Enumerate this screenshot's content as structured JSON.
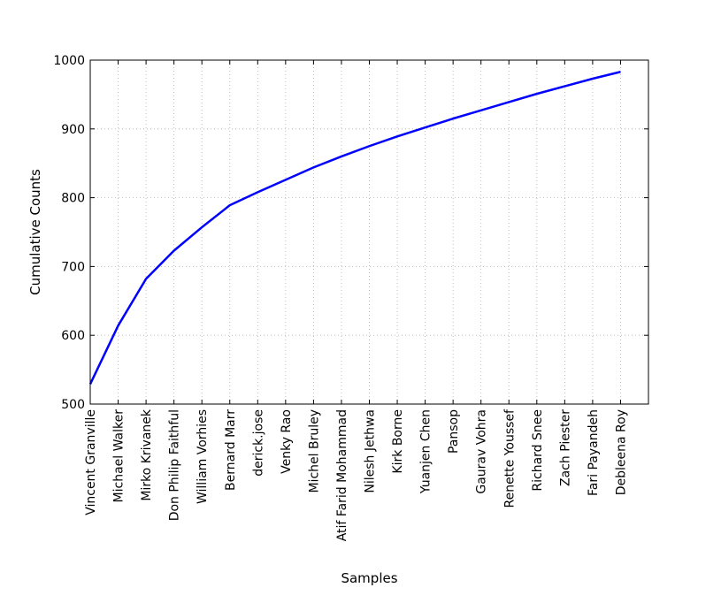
{
  "chart_data": {
    "type": "line",
    "xlabel": "Samples",
    "ylabel": "Cumulative Counts",
    "ylim": [
      500,
      1000
    ],
    "yticks": [
      500,
      600,
      700,
      800,
      900,
      1000
    ],
    "grid": true,
    "categories": [
      "Vincent Granville",
      "Michael Walker",
      "Mirko Krivanek",
      "Don Philip Faithful",
      "William Vorhies",
      "Bernard Marr",
      "derick.jose",
      "Venky Rao",
      "Michel Bruley",
      "Atif Farid Mohammad",
      "Nilesh Jethwa",
      "Kirk Borne",
      "Yuanjen Chen",
      "Pansop",
      "Gaurav Vohra",
      "Renette Youssef",
      "Richard Snee",
      "Zach Piester",
      "Fari Payandeh",
      "Debleena Roy"
    ],
    "series": [
      {
        "color": "#0000ff",
        "values": [
          529,
          614,
          682,
          723,
          757,
          789,
          808,
          826,
          844,
          860,
          875,
          889,
          902,
          915,
          927,
          939,
          951,
          962,
          973,
          983
        ]
      }
    ]
  }
}
